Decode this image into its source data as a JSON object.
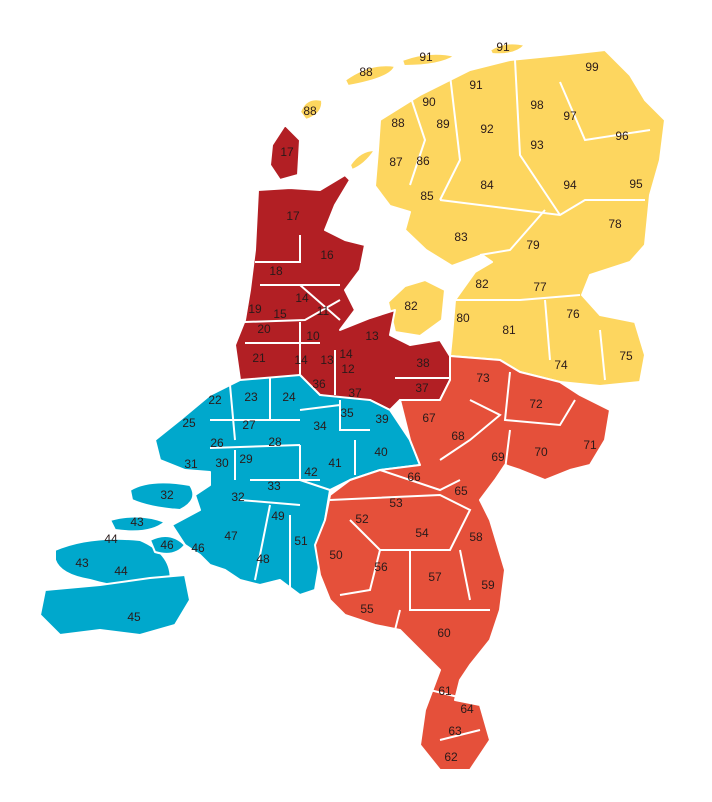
{
  "map": {
    "groups": [
      {
        "key": "yellow",
        "color": "#fdd65f",
        "codes": [
          "91",
          "91",
          "88",
          "99",
          "91",
          "90",
          "88",
          "98",
          "97",
          "89",
          "88",
          "92",
          "96",
          "93",
          "87",
          "86",
          "84",
          "94",
          "95",
          "85",
          "83",
          "79",
          "78",
          "82",
          "82",
          "77",
          "80",
          "76",
          "81",
          "75",
          "74"
        ]
      },
      {
        "key": "darkred",
        "color": "#b21f24",
        "codes": [
          "17",
          "17",
          "16",
          "18",
          "14",
          "19",
          "15",
          "11",
          "20",
          "10",
          "13",
          "21",
          "14",
          "13",
          "14",
          "12",
          "38",
          "36",
          "37",
          "37"
        ]
      },
      {
        "key": "blue",
        "color": "#00a8cc",
        "codes": [
          "22",
          "23",
          "24",
          "25",
          "27",
          "34",
          "35",
          "39",
          "26",
          "28",
          "29",
          "30",
          "31",
          "40",
          "41",
          "42",
          "33",
          "32",
          "32",
          "43",
          "49",
          "47",
          "46",
          "46",
          "44",
          "51",
          "48",
          "43",
          "44",
          "45"
        ]
      },
      {
        "key": "orange",
        "color": "#e5503a",
        "codes": [
          "73",
          "72",
          "67",
          "68",
          "71",
          "70",
          "69",
          "66",
          "65",
          "53",
          "52",
          "54",
          "58",
          "50",
          "56",
          "57",
          "59",
          "55",
          "60",
          "61",
          "64",
          "63",
          "62"
        ]
      }
    ]
  }
}
